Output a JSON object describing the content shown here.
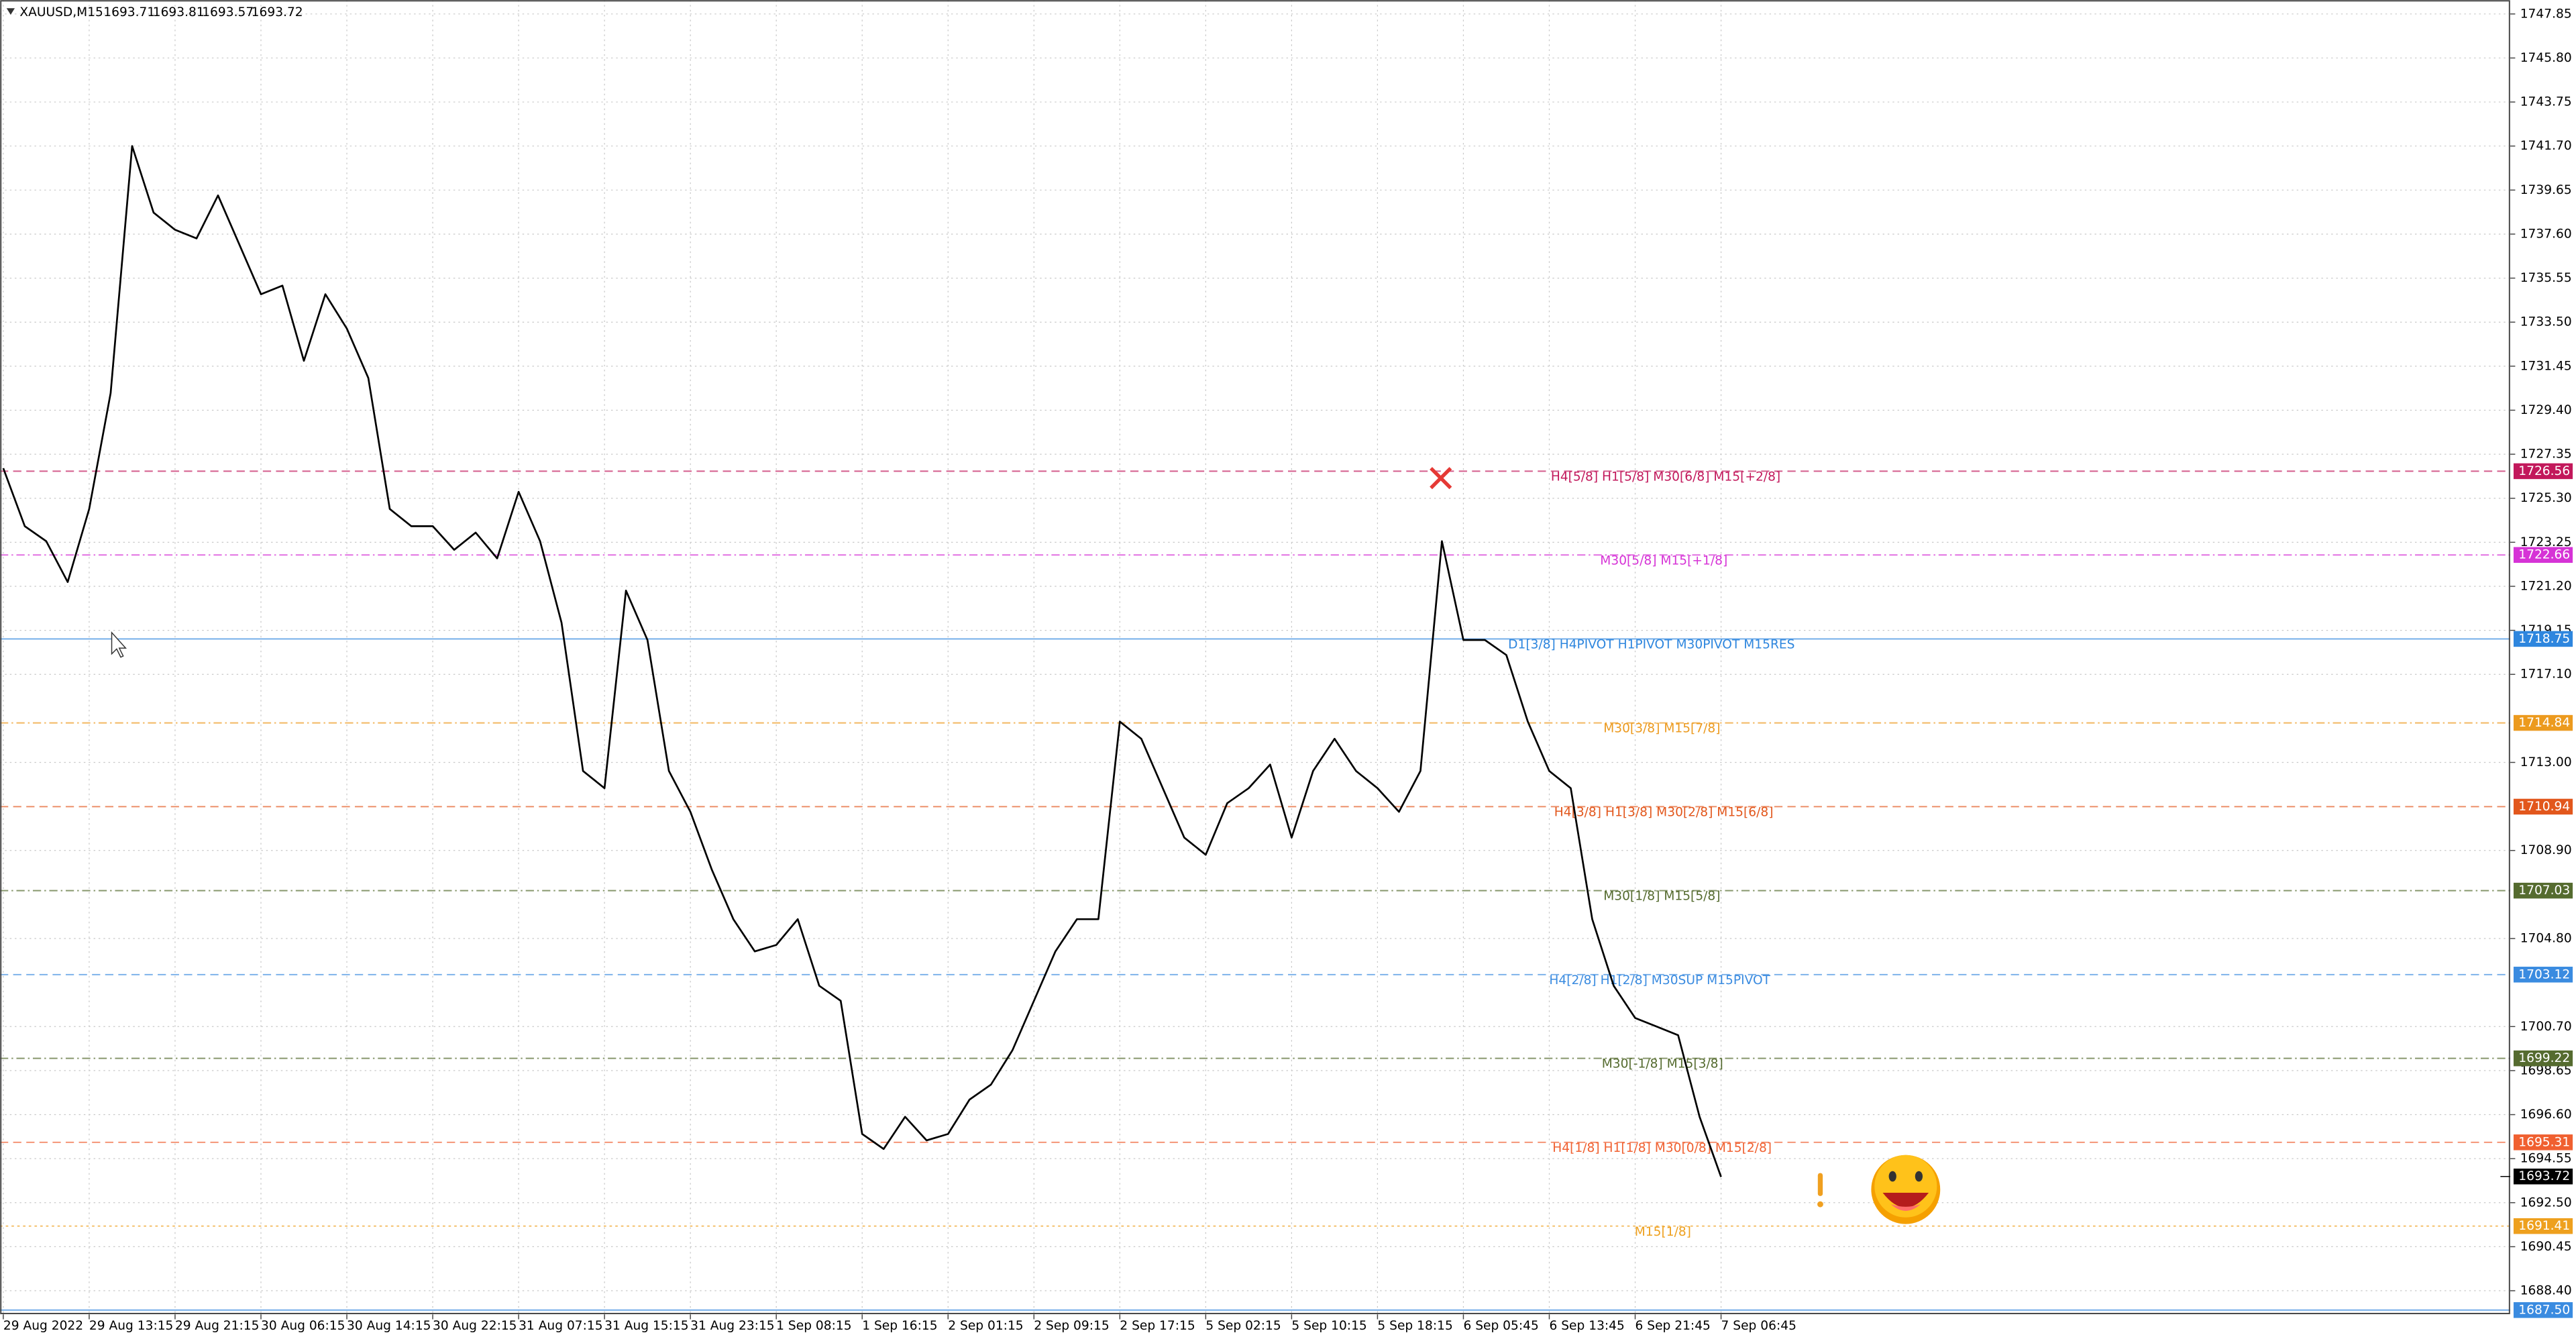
{
  "chart_data": {
    "type": "line",
    "title": "XAUUSD,M15",
    "ohlc": [
      1693.71,
      1693.81,
      1693.57,
      1693.72
    ],
    "last_price": 1693.72,
    "color": "#000000",
    "grid": true,
    "ylim": [
      1687.3,
      1748.5
    ],
    "yticks": [
      1747.85,
      {
        "value": 1745.8,
        "label": "1745.80"
      },
      1743.75,
      {
        "value": 1741.7,
        "label": "1741.70"
      },
      1739.65,
      {
        "value": 1737.6,
        "label": "1737.60"
      },
      1735.55,
      {
        "value": 1733.5,
        "label": "1733.50"
      },
      1731.45,
      {
        "value": 1729.4,
        "label": "1729.40"
      },
      1727.35,
      {
        "value": 1725.3,
        "label": "1725.30"
      },
      1723.25,
      {
        "value": 1721.2,
        "label": "1721.20"
      },
      1719.15,
      {
        "value": 1717.1,
        "label": "1717.10"
      },
      {
        "value": 1713,
        "label": "1713.00"
      },
      {
        "value": 1708.9,
        "label": "1708.90"
      },
      {
        "value": 1704.8,
        "label": "1704.80"
      },
      {
        "value": 1700.7,
        "label": "1700.70"
      },
      1698.65,
      {
        "value": 1696.6,
        "label": "1696.60"
      },
      1694.55,
      {
        "value": 1692.5,
        "label": "1692.50"
      },
      1690.45,
      {
        "value": 1688.4,
        "label": "1688.40"
      }
    ],
    "categories": [
      "29 Aug 2022",
      null,
      null,
      null,
      "29 Aug 13:15",
      null,
      null,
      null,
      "29 Aug 21:15",
      null,
      null,
      null,
      "30 Aug 06:15",
      null,
      null,
      null,
      "30 Aug 14:15",
      null,
      null,
      null,
      "30 Aug 22:15",
      null,
      null,
      null,
      "31 Aug 07:15",
      null,
      null,
      null,
      "31 Aug 15:15",
      null,
      null,
      null,
      "31 Aug 23:15",
      null,
      null,
      null,
      "1 Sep 08:15",
      null,
      null,
      null,
      "1 Sep 16:15",
      null,
      null,
      null,
      "2 Sep 01:15",
      null,
      null,
      null,
      "2 Sep 09:15",
      null,
      null,
      null,
      "2 Sep 17:15",
      null,
      null,
      null,
      "5 Sep 02:15",
      null,
      null,
      null,
      "5 Sep 10:15",
      null,
      null,
      null,
      "5 Sep 18:15",
      null,
      null,
      null,
      "6 Sep 05:45",
      null,
      null,
      null,
      "6 Sep 13:45",
      null,
      null,
      null,
      "6 Sep 21:45",
      null,
      null,
      null,
      "7 Sep 06:45"
    ],
    "values": [
      1726.7,
      1724.0,
      1723.3,
      1721.4,
      1724.8,
      1730.2,
      1741.7,
      1738.6,
      1737.8,
      1737.4,
      1739.4,
      1737.1,
      1734.8,
      1735.2,
      1731.7,
      1734.8,
      1733.2,
      1730.9,
      1724.8,
      1724.0,
      1724.0,
      1722.9,
      1723.7,
      1722.5,
      1725.6,
      1723.3,
      1719.5,
      1712.6,
      1711.8,
      1721.0,
      1718.7,
      1712.6,
      1710.7,
      1708.0,
      1705.7,
      1704.2,
      1704.5,
      1705.7,
      1702.6,
      1701.9,
      1695.7,
      1695.0,
      1696.5,
      1695.4,
      1695.7,
      1697.3,
      1698.0,
      1699.6,
      1701.9,
      1704.2,
      1705.7,
      1705.7,
      1714.9,
      1714.1,
      1711.8,
      1709.5,
      1708.7,
      1711.1,
      1711.8,
      1712.9,
      1709.5,
      1712.6,
      1714.1,
      1712.6,
      1711.8,
      1710.7,
      1712.6,
      1723.3,
      1718.7,
      1718.7,
      1718.0,
      1714.9,
      1712.6,
      1711.8,
      1705.7,
      1702.6,
      1701.1,
      1700.7,
      1700.3,
      1696.5,
      1693.7
    ],
    "levels": [
      {
        "value": 1726.56,
        "label": "H4[5/8] H1[5/8] M30[6/8] M15[+2/8]",
        "color": "#c2185b",
        "style": "dashed"
      },
      {
        "value": 1722.66,
        "label": "M30[5/8] M15[+1/8]",
        "color": "#d633d6",
        "style": "dashdot"
      },
      {
        "value": 1718.75,
        "label": "D1[3/8] H4PIVOT H1PIVOT M30PIVOT M15RES",
        "color": "#2e86de",
        "style": "solid"
      },
      {
        "value": 1714.84,
        "label": "M30[3/8] M15[7/8]",
        "color": "#ec9a1e",
        "style": "dashdot"
      },
      {
        "value": 1710.94,
        "label": "H4[3/8] H1[3/8] M30[2/8] M15[6/8]",
        "color": "#e2571c",
        "style": "dashed"
      },
      {
        "value": 1707.03,
        "label": "M30[1/8] M15[5/8]",
        "color": "#556b2f",
        "style": "dashdot"
      },
      {
        "value": 1703.12,
        "label": "H4[2/8] H1[2/8] M30SUP M15PIVOT",
        "color": "#3a8be0",
        "style": "dashed"
      },
      {
        "value": 1699.22,
        "label": "M30[-1/8] M15[3/8]",
        "color": "#556b2f",
        "style": "dashdot"
      },
      {
        "value": 1695.31,
        "label": "H4[1/8] H1[1/8] M30[0/8] M15[2/8]",
        "color": "#f06030",
        "style": "dashed"
      },
      {
        "value": 1691.41,
        "label": "M15[1/8]",
        "color": "#eea01e",
        "style": "dotted"
      },
      {
        "value": 1687.5,
        "value_label": "1687.50",
        "color": "#3a8be0",
        "style": "solid"
      }
    ]
  }
}
